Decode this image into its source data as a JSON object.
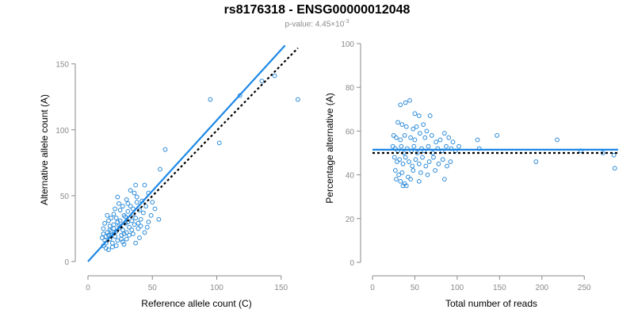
{
  "title": "rs8176318 - ENSG00000012048",
  "subtitle": {
    "prefix": "p-value: 4.45×10",
    "exp": "-3"
  },
  "colors": {
    "points": "#2a8ad8",
    "fit": "#1e88e5",
    "reference": "#000000",
    "axis": "#8a8a8a"
  },
  "chart_data": [
    {
      "type": "scatter",
      "xlabel": "Reference allele count (C)",
      "ylabel": "Alternative allele count (A)",
      "xlim": [
        0,
        160
      ],
      "ylim": [
        0,
        160
      ],
      "xticks": [
        0,
        50,
        100,
        150
      ],
      "yticks": [
        0,
        50,
        100,
        150
      ],
      "fit_line": {
        "x": [
          0,
          153
        ],
        "y": [
          0,
          164
        ]
      },
      "reference_line": {
        "x": [
          15,
          163
        ],
        "y": [
          15,
          162
        ]
      },
      "points": [
        [
          95,
          123
        ],
        [
          163,
          123
        ],
        [
          118,
          126
        ],
        [
          135,
          137
        ],
        [
          145,
          141
        ],
        [
          102,
          90
        ],
        [
          60,
          85
        ],
        [
          56,
          70
        ],
        [
          55,
          32
        ],
        [
          47,
          52
        ],
        [
          44,
          58
        ],
        [
          37,
          58
        ],
        [
          12,
          12
        ],
        [
          13,
          16
        ],
        [
          14,
          19
        ],
        [
          15,
          22
        ],
        [
          12,
          25
        ],
        [
          13,
          29
        ],
        [
          16,
          31
        ],
        [
          14,
          14
        ],
        [
          17,
          17
        ],
        [
          18,
          20
        ],
        [
          19,
          14
        ],
        [
          17,
          24
        ],
        [
          20,
          28
        ],
        [
          21,
          19
        ],
        [
          22,
          23
        ],
        [
          23,
          16
        ],
        [
          24,
          27
        ],
        [
          25,
          31
        ],
        [
          22,
          33
        ],
        [
          26,
          20
        ],
        [
          27,
          24
        ],
        [
          28,
          35
        ],
        [
          29,
          29
        ],
        [
          30,
          22
        ],
        [
          31,
          38
        ],
        [
          32,
          26
        ],
        [
          33,
          42
        ],
        [
          34,
          31
        ],
        [
          35,
          36
        ],
        [
          36,
          28
        ],
        [
          38,
          45
        ],
        [
          40,
          39
        ],
        [
          42,
          46
        ],
        [
          36,
          52
        ],
        [
          33,
          54
        ],
        [
          38,
          49
        ],
        [
          18,
          33
        ],
        [
          15,
          35
        ],
        [
          20,
          36
        ],
        [
          25,
          39
        ],
        [
          27,
          42
        ],
        [
          30,
          47
        ],
        [
          23,
          49
        ],
        [
          29,
          34
        ],
        [
          31,
          30
        ],
        [
          34,
          24
        ],
        [
          26,
          17
        ],
        [
          19,
          11
        ],
        [
          16,
          9
        ],
        [
          28,
          13
        ],
        [
          35,
          21
        ],
        [
          39,
          25
        ],
        [
          41,
          32
        ],
        [
          43,
          37
        ],
        [
          45,
          42
        ],
        [
          47,
          30
        ],
        [
          49,
          35
        ],
        [
          46,
          26
        ],
        [
          44,
          22
        ],
        [
          52,
          40
        ],
        [
          50,
          45
        ],
        [
          40,
          18
        ],
        [
          37,
          14
        ],
        [
          21,
          40
        ],
        [
          24,
          44
        ],
        [
          17,
          27
        ],
        [
          14,
          10
        ],
        [
          11,
          18
        ],
        [
          12,
          21
        ],
        [
          30,
          17
        ],
        [
          32,
          20
        ],
        [
          27,
          15
        ],
        [
          22,
          12
        ],
        [
          35,
          40
        ],
        [
          37,
          33
        ],
        [
          39,
          29
        ],
        [
          41,
          27
        ],
        [
          20,
          25
        ],
        [
          18,
          23
        ],
        [
          16,
          20
        ],
        [
          23,
          30
        ],
        [
          25,
          26
        ],
        [
          28,
          21
        ],
        [
          31,
          44
        ]
      ]
    },
    {
      "type": "scatter",
      "xlabel": "Total number of reads",
      "ylabel": "Percentage alternative (A)",
      "xlim": [
        0,
        290
      ],
      "ylim": [
        0,
        100
      ],
      "xticks": [
        0,
        50,
        100,
        150,
        200,
        250
      ],
      "yticks": [
        0,
        20,
        40,
        60,
        80,
        100
      ],
      "fit_line": {
        "x": [
          0,
          290
        ],
        "y": [
          51.5,
          51.5
        ]
      },
      "reference_line": {
        "x": [
          0,
          290
        ],
        "y": [
          50,
          50
        ]
      },
      "points": [
        [
          39,
          73
        ],
        [
          44,
          74
        ],
        [
          33,
          72
        ],
        [
          50,
          68
        ],
        [
          55,
          67
        ],
        [
          68,
          67
        ],
        [
          30,
          64
        ],
        [
          35,
          63
        ],
        [
          40,
          62
        ],
        [
          48,
          61
        ],
        [
          52,
          62
        ],
        [
          60,
          63
        ],
        [
          64,
          60
        ],
        [
          25,
          58
        ],
        [
          28,
          57
        ],
        [
          33,
          56
        ],
        [
          38,
          58
        ],
        [
          45,
          57
        ],
        [
          50,
          56
        ],
        [
          56,
          59
        ],
        [
          62,
          57
        ],
        [
          70,
          58
        ],
        [
          75,
          55
        ],
        [
          80,
          56
        ],
        [
          85,
          59
        ],
        [
          90,
          57
        ],
        [
          95,
          55
        ],
        [
          24,
          53
        ],
        [
          27,
          52
        ],
        [
          30,
          51
        ],
        [
          34,
          53
        ],
        [
          37,
          50
        ],
        [
          41,
          52
        ],
        [
          46,
          51
        ],
        [
          49,
          53
        ],
        [
          53,
          50
        ],
        [
          58,
          52
        ],
        [
          61,
          51
        ],
        [
          66,
          53
        ],
        [
          71,
          50
        ],
        [
          77,
          52
        ],
        [
          82,
          51
        ],
        [
          87,
          53
        ],
        [
          93,
          52
        ],
        [
          98,
          51
        ],
        [
          102,
          53
        ],
        [
          26,
          48
        ],
        [
          29,
          46
        ],
        [
          32,
          47
        ],
        [
          36,
          45
        ],
        [
          39,
          48
        ],
        [
          43,
          46
        ],
        [
          47,
          44
        ],
        [
          51,
          47
        ],
        [
          55,
          45
        ],
        [
          59,
          48
        ],
        [
          63,
          44
        ],
        [
          67,
          46
        ],
        [
          72,
          48
        ],
        [
          78,
          45
        ],
        [
          83,
          47
        ],
        [
          88,
          44
        ],
        [
          92,
          46
        ],
        [
          27,
          42
        ],
        [
          31,
          40
        ],
        [
          35,
          41
        ],
        [
          42,
          39
        ],
        [
          48,
          42
        ],
        [
          57,
          41
        ],
        [
          65,
          40
        ],
        [
          74,
          42
        ],
        [
          28,
          38
        ],
        [
          33,
          37
        ],
        [
          38,
          36
        ],
        [
          45,
          38
        ],
        [
          55,
          37
        ],
        [
          85,
          38
        ],
        [
          36,
          35
        ],
        [
          40,
          35
        ],
        [
          124,
          56
        ],
        [
          126,
          52
        ],
        [
          147,
          58
        ],
        [
          193,
          46
        ],
        [
          218,
          56
        ],
        [
          246,
          51
        ],
        [
          272,
          50
        ],
        [
          285,
          49
        ],
        [
          286,
          43
        ]
      ]
    }
  ]
}
